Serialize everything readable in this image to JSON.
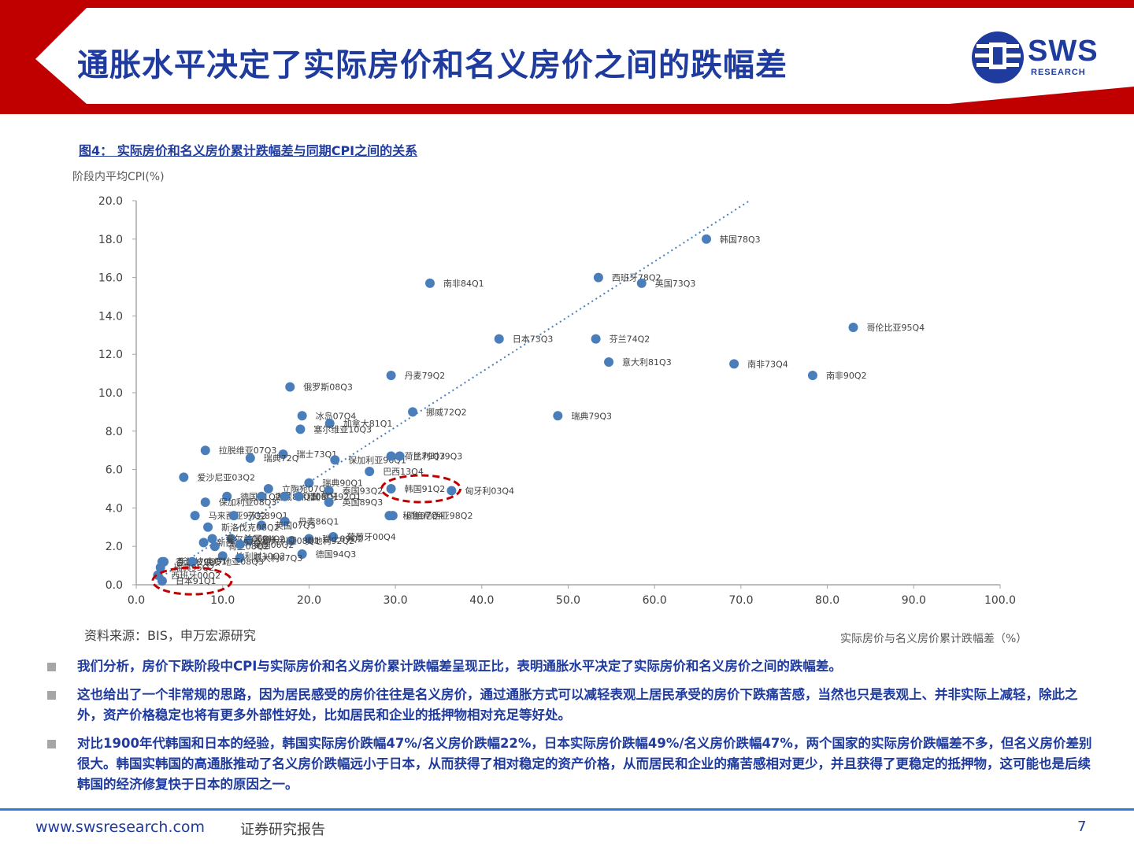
{
  "header": {
    "title": "通胀水平决定了实际房价和名义房价之间的跌幅差",
    "logo_text": "SWS",
    "logo_sub": "RESEARCH"
  },
  "figure": {
    "title": "图4： 实际房价和名义房价累计跌幅差与同期CPI之间的关系",
    "source": "资料来源：BIS，申万宏源研究"
  },
  "chart_data": {
    "type": "scatter",
    "xlabel": "实际房价与名义房价累计跌幅差（%）",
    "ylabel": "阶段内平均CPI(%)",
    "xlim": [
      0,
      100
    ],
    "ylim": [
      0,
      20
    ],
    "x_ticks": [
      "0.0",
      "10.0",
      "20.0",
      "30.0",
      "40.0",
      "50.0",
      "60.0",
      "70.0",
      "80.0",
      "90.0",
      "100.0"
    ],
    "y_ticks": [
      "0.0",
      "2.0",
      "4.0",
      "6.0",
      "8.0",
      "10.0",
      "12.0",
      "14.0",
      "16.0",
      "18.0",
      "20.0"
    ],
    "marker_color": "#4a7ebb",
    "trendline_color": "#4a7ebb",
    "highlight_color": "#c00000",
    "trendline": [
      [
        2.5,
        0.3
      ],
      [
        71,
        20
      ]
    ],
    "points": [
      {
        "label": "韩国78Q3",
        "x": 66.0,
        "y": 18.0
      },
      {
        "label": "南非84Q1",
        "x": 34.0,
        "y": 15.7
      },
      {
        "label": "西班牙78Q2",
        "x": 53.5,
        "y": 16.0
      },
      {
        "label": "英国73Q3",
        "x": 58.5,
        "y": 15.7
      },
      {
        "label": "哥伦比亚95Q4",
        "x": 83.0,
        "y": 13.4
      },
      {
        "label": "日本73Q3",
        "x": 42.0,
        "y": 12.8
      },
      {
        "label": "芬兰74Q2",
        "x": 53.2,
        "y": 12.8
      },
      {
        "label": "意大利81Q3",
        "x": 54.7,
        "y": 11.6
      },
      {
        "label": "南非73Q4",
        "x": 69.2,
        "y": 11.5
      },
      {
        "label": "南非90Q2",
        "x": 78.3,
        "y": 10.9
      },
      {
        "label": "丹麦79Q2",
        "x": 29.5,
        "y": 10.9
      },
      {
        "label": "俄罗斯08Q3",
        "x": 17.8,
        "y": 10.3
      },
      {
        "label": "挪威72Q2",
        "x": 32.0,
        "y": 9.0
      },
      {
        "label": "瑞典79Q3",
        "x": 48.8,
        "y": 8.8
      },
      {
        "label": "冰岛07Q4",
        "x": 19.2,
        "y": 8.8
      },
      {
        "label": "加拿大81Q1",
        "x": 22.4,
        "y": 8.4
      },
      {
        "label": "塞尔维亚10Q3",
        "x": 19.0,
        "y": 8.1
      },
      {
        "label": "拉脱维亚07Q3",
        "x": 8.0,
        "y": 7.0
      },
      {
        "label": "瑞士73Q1",
        "x": 17.0,
        "y": 6.8
      },
      {
        "label": "瑞典72Q",
        "x": 13.2,
        "y": 6.6
      },
      {
        "label": "保加利亚96Q1",
        "x": 23.0,
        "y": 6.5
      },
      {
        "label": "荷兰79Q3",
        "x": 29.5,
        "y": 6.7
      },
      {
        "label": "比利时79Q3",
        "x": 30.5,
        "y": 6.7
      },
      {
        "label": "巴西13Q4",
        "x": 27.0,
        "y": 5.9
      },
      {
        "label": "爱沙尼亚03Q2",
        "x": 5.5,
        "y": 5.6
      },
      {
        "label": "瑞典90Q1",
        "x": 20.0,
        "y": 5.3
      },
      {
        "label": "立陶宛07Q3",
        "x": 15.3,
        "y": 5.0
      },
      {
        "label": "泰国93Q2",
        "x": 22.3,
        "y": 4.9
      },
      {
        "label": "德国71Q2",
        "x": 10.5,
        "y": 4.6
      },
      {
        "label": "挪威88Q1",
        "x": 14.5,
        "y": 4.6
      },
      {
        "label": "希腊08Q1",
        "x": 17.2,
        "y": 4.6
      },
      {
        "label": "葡萄牙92Q1",
        "x": 18.8,
        "y": 4.6
      },
      {
        "label": "英国89Q3",
        "x": 22.3,
        "y": 4.3
      },
      {
        "label": "韩国91Q2",
        "x": 29.5,
        "y": 5.0
      },
      {
        "label": "匈牙利03Q4",
        "x": 36.5,
        "y": 4.9
      },
      {
        "label": "保加利亚08Q3",
        "x": 8.0,
        "y": 4.3
      },
      {
        "label": "马来西亚97Q2",
        "x": 6.8,
        "y": 3.6
      },
      {
        "label": "芬兰89Q1",
        "x": 11.3,
        "y": 3.6
      },
      {
        "label": "秘鲁97Q4",
        "x": 29.3,
        "y": 3.6
      },
      {
        "label": "印度尼西亚98Q2",
        "x": 29.7,
        "y": 3.6
      },
      {
        "label": "丹麦86Q1",
        "x": 17.2,
        "y": 3.3
      },
      {
        "label": "英国07Q3",
        "x": 14.5,
        "y": 3.1
      },
      {
        "label": "斯洛伐克08Q2",
        "x": 8.3,
        "y": 3.0
      },
      {
        "label": "葡萄牙00Q4",
        "x": 22.8,
        "y": 2.5
      },
      {
        "label": "瑞士89Q2",
        "x": 20.0,
        "y": 2.4
      },
      {
        "label": "奥地利92Q2",
        "x": 18.0,
        "y": 2.3
      },
      {
        "label": "法国91Q2",
        "x": 11.0,
        "y": 2.4
      },
      {
        "label": "澳大利亚08Q1",
        "x": 13.0,
        "y": 2.3
      },
      {
        "label": "爱尔兰06Q4",
        "x": 8.8,
        "y": 2.4
      },
      {
        "label": "新西兰07Q4",
        "x": 7.8,
        "y": 2.2
      },
      {
        "label": "荷兰08Q2",
        "x": 9.1,
        "y": 2.0
      },
      {
        "label": "美国06Q2",
        "x": 12.0,
        "y": 2.1
      },
      {
        "label": "德国94Q3",
        "x": 19.2,
        "y": 1.6
      },
      {
        "label": "比利时10Q2",
        "x": 10.0,
        "y": 1.5
      },
      {
        "label": "意大利07Q3",
        "x": 12.0,
        "y": 1.4
      },
      {
        "label": "香港97Q3",
        "x": 3.0,
        "y": 1.2
      },
      {
        "label": "新加坡96Q1",
        "x": 3.2,
        "y": 1.2
      },
      {
        "label": "克罗地亚08Q3",
        "x": 6.5,
        "y": 1.2
      },
      {
        "label": "瑞典95Q2",
        "x": 2.8,
        "y": 0.9
      },
      {
        "label": "西班牙00Q2",
        "x": 2.5,
        "y": 0.5
      },
      {
        "label": "日本91Q1",
        "x": 3.0,
        "y": 0.2
      }
    ],
    "highlights": [
      "日本91Q1",
      "韩国91Q2"
    ]
  },
  "bullets": [
    "我们分析，房价下跌阶段中CPI与实际房价和名义房价累计跌幅差呈现正比，表明通胀水平决定了实际房价和名义房价之间的跌幅差。",
    "这也给出了一个非常规的思路，因为居民感受的房价往往是名义房价，通过通胀方式可以减轻表观上居民承受的房价下跌痛苦感，当然也只是表观上、并非实际上减轻，除此之外，资产价格稳定也将有更多外部性好处，比如居民和企业的抵押物相对充足等好处。",
    "对比1900年代韩国和日本的经验，韩国实际房价跌幅47%/名义房价跌幅22%，日本实际房价跌幅49%/名义房价跌幅47%，两个国家的实际房价跌幅差不多，但名义房价差别很大。韩国实韩国的高通胀推动了名义房价跌幅远小于日本，从而获得了相对稳定的资产价格，从而居民和企业的痛苦感相对更少，并且获得了更稳定的抵押物，这可能也是后续韩国的经济修复快于日本的原因之一。"
  ],
  "footer": {
    "url": "www.swsresearch.com",
    "category": "证券研究报告",
    "page": "7"
  }
}
